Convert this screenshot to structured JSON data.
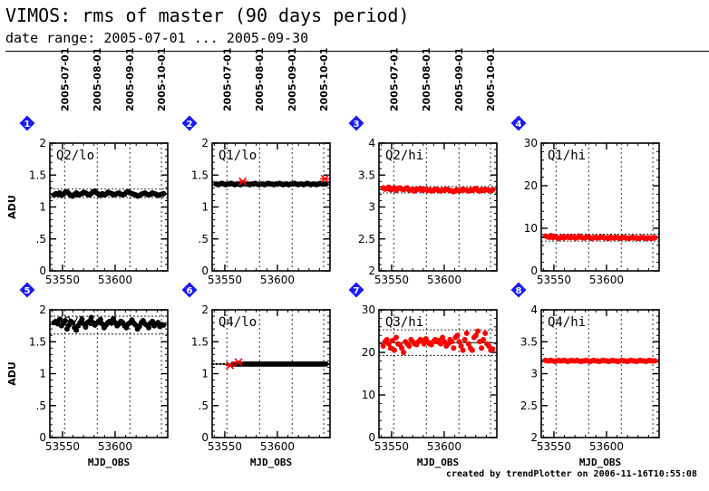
{
  "header": {
    "title": "VIMOS: rms of master (90 days period)",
    "subtitle": "date range: 2005-07-01 ... 2005-09-30"
  },
  "footer": {
    "credit": "created by trendPlotter on 2006-11-16T10:55:08"
  },
  "colors": {
    "black_series": "#000000",
    "red_series": "#ff0000",
    "badge": "#1a1aff"
  },
  "chart_data": [
    {
      "type": "scatter",
      "badge": "1",
      "label": "Q2/lo",
      "xlabel": "",
      "ylabel": "ADU",
      "xlim": [
        53538,
        53650
      ],
      "ylim": [
        0,
        2
      ],
      "yticks": [
        0,
        0.5,
        1,
        1.5,
        2
      ],
      "ytick_labels": [
        "0",
        ".5",
        "1",
        "1.5",
        "2"
      ],
      "xticks": [
        53550,
        53600
      ],
      "xtick_labels": [
        "53550",
        "53600"
      ],
      "date_ticks": [
        "2005-07-01",
        "2005-08-01",
        "2005-09-01",
        "2005-10-01"
      ],
      "date_tick_mjd": [
        53552,
        53583,
        53614,
        53644
      ],
      "color": "black",
      "median": 1.21,
      "band": [
        1.15,
        1.28
      ],
      "y": [
        1.19,
        1.21,
        1.2,
        1.22,
        1.18,
        1.2,
        1.23,
        1.24,
        1.21,
        1.18,
        1.17,
        1.2,
        1.22,
        1.19,
        1.2,
        1.21,
        1.23,
        1.22,
        1.2,
        1.19,
        1.21,
        1.24,
        1.25,
        1.22,
        1.2,
        1.18,
        1.21,
        1.19,
        1.2,
        1.23,
        1.22,
        1.21,
        1.19,
        1.2,
        1.21,
        1.22,
        1.2,
        1.19,
        1.2,
        1.23,
        1.24,
        1.22,
        1.21,
        1.2,
        1.19,
        1.17,
        1.18,
        1.2,
        1.21,
        1.22,
        1.2,
        1.19,
        1.2,
        1.22,
        1.21,
        1.2,
        1.18,
        1.19,
        1.2,
        1.21
      ],
      "outliers": []
    },
    {
      "type": "scatter",
      "badge": "2",
      "label": "Q1/lo",
      "xlabel": "",
      "ylabel": "",
      "xlim": [
        53538,
        53650
      ],
      "ylim": [
        0,
        2
      ],
      "yticks": [
        0,
        0.5,
        1,
        1.5,
        2
      ],
      "ytick_labels": [
        "0",
        ".5",
        "1",
        "1.5",
        "2"
      ],
      "xticks": [
        53550,
        53600
      ],
      "xtick_labels": [
        "53550",
        "53600"
      ],
      "date_ticks": [
        "2005-07-01",
        "2005-08-01",
        "2005-09-01",
        "2005-10-01"
      ],
      "date_tick_mjd": [
        53552,
        53583,
        53614,
        53644
      ],
      "color": "black",
      "median": 1.36,
      "band": [
        1.34,
        1.38
      ],
      "y": [
        1.36,
        1.35,
        1.36,
        1.37,
        1.36,
        1.35,
        1.36,
        1.36,
        1.37,
        1.36,
        1.35,
        1.36,
        1.36,
        1.35,
        1.36,
        1.37,
        1.36,
        1.36,
        1.35,
        1.36,
        1.36,
        1.37,
        1.36,
        1.35,
        1.36,
        1.36,
        1.35,
        1.36,
        1.37,
        1.36,
        1.36,
        1.35,
        1.36,
        1.36,
        1.37,
        1.36,
        1.35,
        1.36,
        1.36,
        1.35,
        1.36,
        1.36,
        1.37,
        1.36,
        1.35,
        1.36,
        1.36,
        1.35,
        1.36,
        1.37,
        1.36,
        1.35,
        1.36,
        1.36,
        1.35,
        1.36,
        1.37,
        1.36,
        1.36,
        1.36
      ],
      "outliers": [
        [
          53567,
          1.4
        ],
        [
          53645,
          1.44
        ]
      ]
    },
    {
      "type": "scatter",
      "badge": "3",
      "label": "Q2/hi",
      "xlabel": "",
      "ylabel": "",
      "xlim": [
        53538,
        53650
      ],
      "ylim": [
        2,
        4
      ],
      "yticks": [
        2,
        2.5,
        3,
        3.5,
        4
      ],
      "ytick_labels": [
        "2",
        "2.5",
        "3",
        "3.5",
        "4"
      ],
      "xticks": [
        53550,
        53600
      ],
      "xtick_labels": [
        "53550",
        "53600"
      ],
      "date_ticks": [
        "2005-07-01",
        "2005-08-01",
        "2005-09-01",
        "2005-10-01"
      ],
      "date_tick_mjd": [
        53552,
        53583,
        53614,
        53644
      ],
      "color": "red",
      "median": 3.27,
      "band": [
        3.22,
        3.32
      ],
      "y": [
        3.3,
        3.28,
        3.29,
        3.31,
        3.27,
        3.28,
        3.3,
        3.26,
        3.29,
        3.3,
        3.28,
        3.27,
        3.29,
        3.3,
        3.26,
        3.27,
        3.28,
        3.25,
        3.27,
        3.28,
        3.29,
        3.26,
        3.27,
        3.28,
        3.26,
        3.27,
        3.25,
        3.26,
        3.28,
        3.27,
        3.26,
        3.25,
        3.27,
        3.26,
        3.28,
        3.27,
        3.26,
        3.25,
        3.24,
        3.26,
        3.27,
        3.25,
        3.26,
        3.28,
        3.27,
        3.26,
        3.25,
        3.27,
        3.26,
        3.28,
        3.29,
        3.26,
        3.25,
        3.27,
        3.26,
        3.28,
        3.27,
        3.26,
        3.25,
        3.27
      ],
      "outliers": []
    },
    {
      "type": "scatter",
      "badge": "4",
      "label": "Q1/hi",
      "xlabel": "",
      "ylabel": "",
      "xlim": [
        53538,
        53650
      ],
      "ylim": [
        0,
        30
      ],
      "yticks": [
        0,
        10,
        20,
        30
      ],
      "ytick_labels": [
        "0",
        "10",
        "20",
        "30"
      ],
      "xticks": [
        53550,
        53600
      ],
      "xtick_labels": [
        "53550",
        "53600"
      ],
      "date_ticks": [],
      "date_tick_mjd": [
        53552,
        53583,
        53614,
        53644
      ],
      "color": "red",
      "median": 7.8,
      "band": [
        7.0,
        8.6
      ],
      "y": [
        8.2,
        8.0,
        7.9,
        8.3,
        7.8,
        8.1,
        7.9,
        7.6,
        7.8,
        8.0,
        7.7,
        7.9,
        8.1,
        7.8,
        7.9,
        8.0,
        7.7,
        7.8,
        8.2,
        7.9,
        7.8,
        7.7,
        7.9,
        8.0,
        7.8,
        7.6,
        7.8,
        7.9,
        7.7,
        7.8,
        8.0,
        7.9,
        7.7,
        7.8,
        7.6,
        7.9,
        7.8,
        7.7,
        7.9,
        7.8,
        7.6,
        7.7,
        7.9,
        7.8,
        7.7,
        7.6,
        7.8,
        7.9,
        7.7,
        7.8,
        7.6,
        7.7,
        7.9,
        7.8,
        7.6,
        7.7,
        7.8,
        7.6,
        7.7,
        7.8
      ],
      "outliers": []
    },
    {
      "type": "scatter",
      "badge": "5",
      "label": "Q3/lo",
      "xlabel": "MJD_OBS",
      "ylabel": "ADU",
      "xlim": [
        53538,
        53650
      ],
      "ylim": [
        0,
        2
      ],
      "yticks": [
        0,
        0.5,
        1,
        1.5,
        2
      ],
      "ytick_labels": [
        "0",
        ".5",
        "1",
        "1.5",
        "2"
      ],
      "xticks": [
        53550,
        53600
      ],
      "xtick_labels": [
        "53550",
        "53600"
      ],
      "date_ticks": [],
      "date_tick_mjd": [
        53552,
        53583,
        53614,
        53644
      ],
      "color": "black",
      "median": 1.77,
      "band": [
        1.62,
        1.9
      ],
      "y": [
        1.8,
        1.82,
        1.78,
        1.85,
        1.75,
        1.8,
        1.83,
        1.7,
        1.76,
        1.82,
        1.8,
        1.72,
        1.68,
        1.75,
        1.8,
        1.85,
        1.78,
        1.73,
        1.8,
        1.82,
        1.88,
        1.8,
        1.76,
        1.79,
        1.82,
        1.85,
        1.78,
        1.72,
        1.76,
        1.8,
        1.82,
        1.79,
        1.86,
        1.8,
        1.75,
        1.78,
        1.82,
        1.8,
        1.75,
        1.72,
        1.78,
        1.8,
        1.84,
        1.79,
        1.76,
        1.7,
        1.74,
        1.8,
        1.83,
        1.78,
        1.76,
        1.72,
        1.79,
        1.82,
        1.75,
        1.78,
        1.8,
        1.74,
        1.77,
        1.76
      ],
      "outliers": []
    },
    {
      "type": "scatter",
      "badge": "6",
      "label": "Q4/lo",
      "xlabel": "MJD_OBS",
      "ylabel": "",
      "xlim": [
        53538,
        53650
      ],
      "ylim": [
        0,
        2
      ],
      "yticks": [
        0,
        0.5,
        1,
        1.5,
        2
      ],
      "ytick_labels": [
        "0",
        ".5",
        "1",
        "1.5",
        "2"
      ],
      "xticks": [
        53550,
        53600
      ],
      "xtick_labels": [
        "53550",
        "53600"
      ],
      "date_ticks": [],
      "date_tick_mjd": [
        53552,
        53583,
        53614,
        53644
      ],
      "color": "black",
      "median": 1.15,
      "band": [
        1.14,
        1.16
      ],
      "y": [
        1.15,
        1.15,
        1.15,
        1.15,
        1.15,
        1.15,
        1.15,
        1.15,
        1.15,
        1.15,
        1.15,
        1.15,
        1.15,
        1.15,
        1.15,
        1.15,
        1.15,
        1.15,
        1.15,
        1.15,
        1.15,
        1.15,
        1.15,
        1.15,
        1.15,
        1.15,
        1.15,
        1.15,
        1.15,
        1.15,
        1.15,
        1.15,
        1.15,
        1.15,
        1.15,
        1.15,
        1.15,
        1.15,
        1.15,
        1.15,
        1.15,
        1.15,
        1.15,
        1.15,
        1.15,
        1.15,
        1.15,
        1.15,
        1.15,
        1.15
      ],
      "x_start": 53558,
      "outliers": [
        [
          53555,
          1.13
        ],
        [
          53563,
          1.18
        ]
      ]
    },
    {
      "type": "scatter",
      "badge": "7",
      "label": "Q3/hi",
      "xlabel": "MJD_OBS",
      "ylabel": "",
      "xlim": [
        53538,
        53650
      ],
      "ylim": [
        0,
        30
      ],
      "yticks": [
        0,
        10,
        20,
        30
      ],
      "ytick_labels": [
        "0",
        "10",
        "20",
        "30"
      ],
      "xticks": [
        53550,
        53600
      ],
      "xtick_labels": [
        "53550",
        "53600"
      ],
      "date_ticks": [],
      "date_tick_mjd": [
        53552,
        53583,
        53614,
        53644
      ],
      "color": "red",
      "median": 22.3,
      "band": [
        19.3,
        25.3
      ],
      "y": [
        21.5,
        22.5,
        23.0,
        22.0,
        21.0,
        22.8,
        20.5,
        23.5,
        22.0,
        21.8,
        21.0,
        20.0,
        22.5,
        22.0,
        21.5,
        23.0,
        22.5,
        22.0,
        21.8,
        22.5,
        23.0,
        22.8,
        22.0,
        23.2,
        22.5,
        22.0,
        21.8,
        22.5,
        23.0,
        22.5,
        22.8,
        22.0,
        23.5,
        22.5,
        21.5,
        22.0,
        23.0,
        22.5,
        21.0,
        23.5,
        24.0,
        22.5,
        21.5,
        20.5,
        23.0,
        24.5,
        22.0,
        21.0,
        20.5,
        23.5,
        24.0,
        25.0,
        22.5,
        21.0,
        23.0,
        24.5,
        22.0,
        21.5,
        20.5,
        20.8
      ],
      "outliers": []
    },
    {
      "type": "scatter",
      "badge": "8",
      "label": "Q4/hi",
      "xlabel": "MJD_OBS",
      "ylabel": "",
      "xlim": [
        53538,
        53650
      ],
      "ylim": [
        2,
        4
      ],
      "yticks": [
        2,
        2.5,
        3,
        3.5,
        4
      ],
      "ytick_labels": [
        "2",
        "2.5",
        "3",
        "3.5",
        "4"
      ],
      "xticks": [
        53550,
        53600
      ],
      "xtick_labels": [
        "53550",
        "53600"
      ],
      "date_ticks": [],
      "date_tick_mjd": [
        53552,
        53583,
        53614,
        53644
      ],
      "color": "red",
      "median": 3.2,
      "band": [
        3.18,
        3.22
      ],
      "y": [
        3.21,
        3.2,
        3.2,
        3.21,
        3.2,
        3.19,
        3.2,
        3.21,
        3.2,
        3.2,
        3.21,
        3.2,
        3.19,
        3.2,
        3.21,
        3.2,
        3.2,
        3.21,
        3.2,
        3.19,
        3.2,
        3.2,
        3.21,
        3.2,
        3.19,
        3.2,
        3.21,
        3.2,
        3.2,
        3.19,
        3.2,
        3.21,
        3.2,
        3.2,
        3.19,
        3.2,
        3.21,
        3.2,
        3.2,
        3.19,
        3.2,
        3.21,
        3.2,
        3.2,
        3.19,
        3.2,
        3.21,
        3.2,
        3.2,
        3.19,
        3.2,
        3.21,
        3.2,
        3.2,
        3.19,
        3.2,
        3.21,
        3.2,
        3.2,
        3.2
      ],
      "outliers": []
    }
  ]
}
